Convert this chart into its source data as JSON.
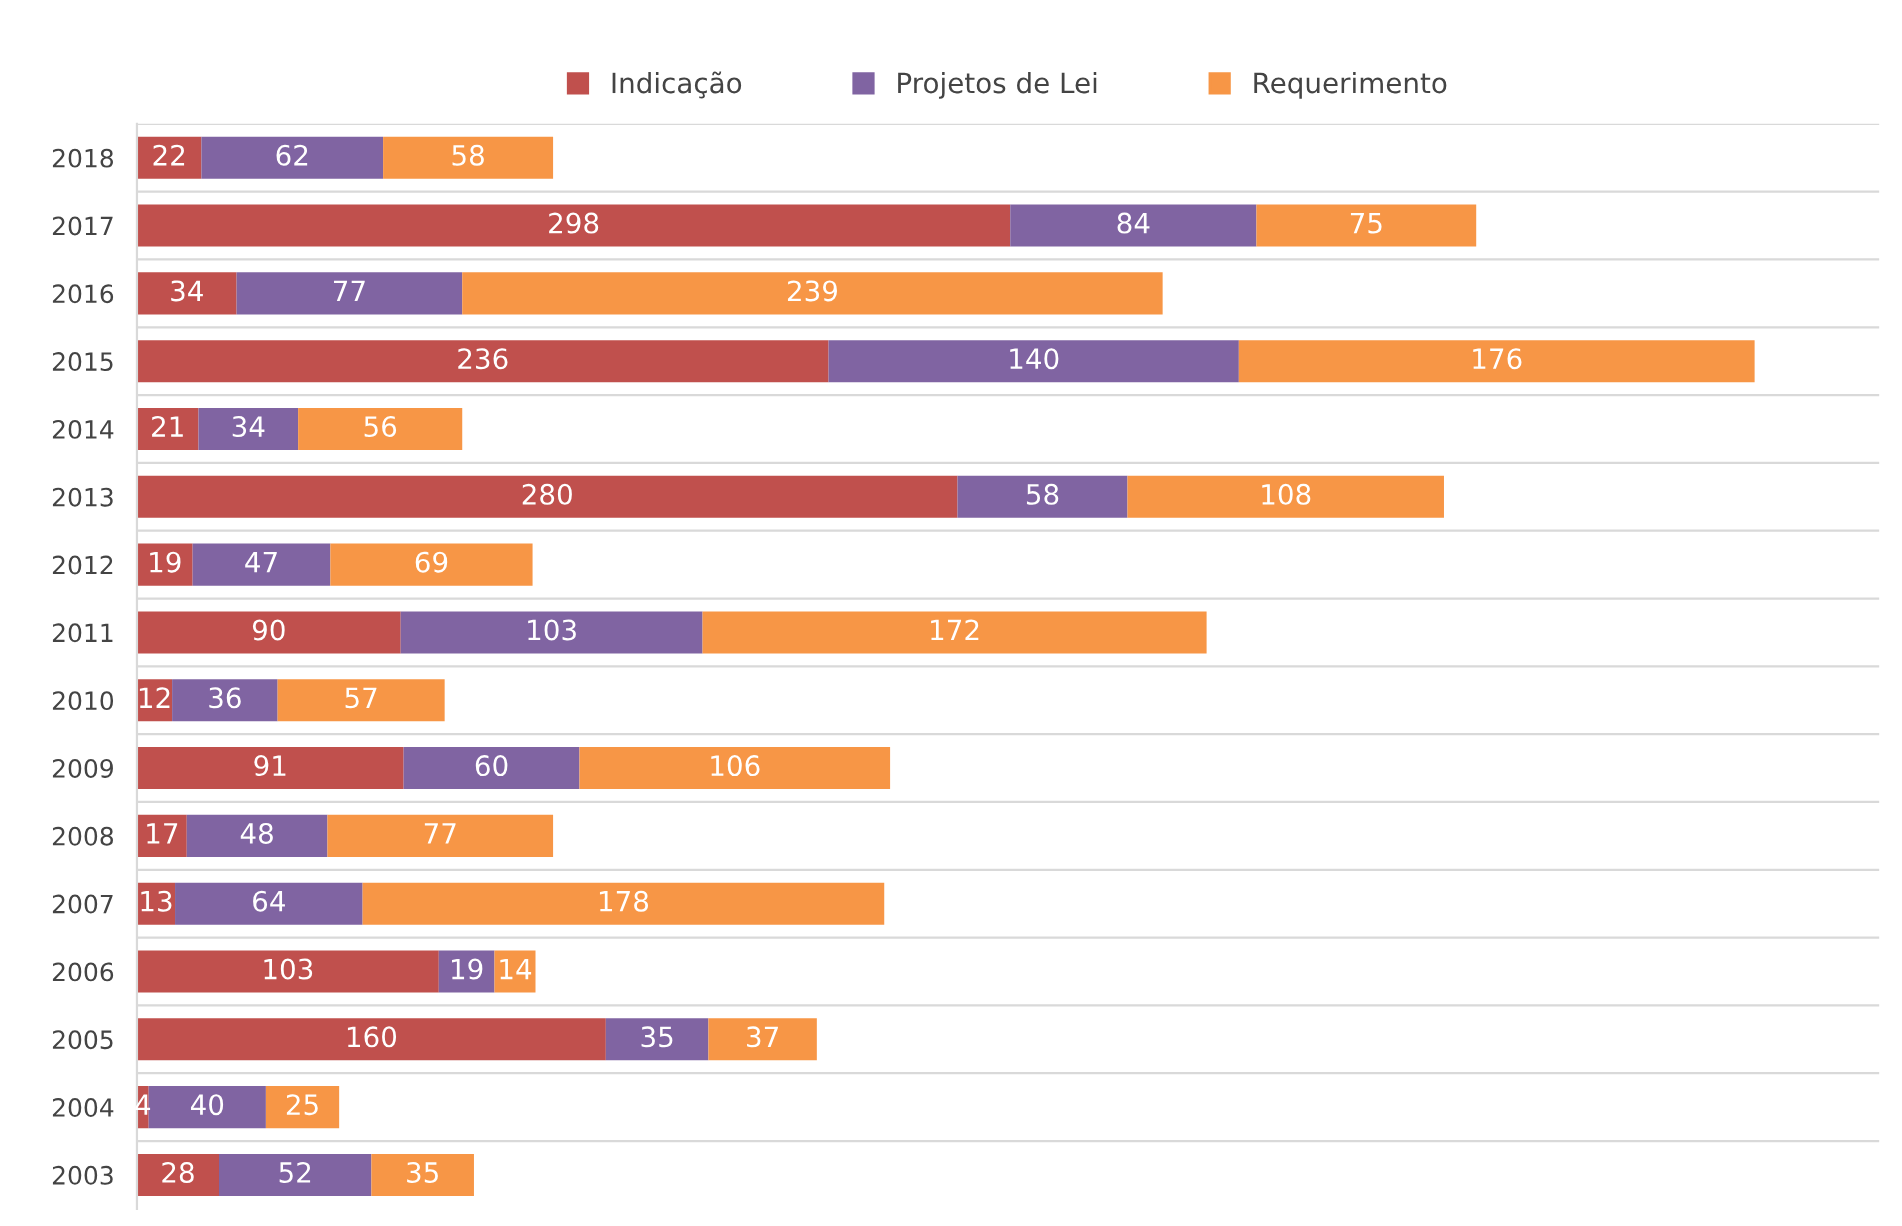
{
  "chart_data": {
    "type": "bar",
    "orientation": "horizontal",
    "stacked": true,
    "data_labels": true,
    "legend": "top",
    "grid": "y",
    "categories": [
      "2018",
      "2017",
      "2016",
      "2015",
      "2014",
      "2013",
      "2012",
      "2011",
      "2010",
      "2009",
      "2008",
      "2007",
      "2006",
      "2005",
      "2004",
      "2003"
    ],
    "series": [
      {
        "name": "Indicação",
        "color": "#c0504d",
        "values": [
          22,
          298,
          34,
          236,
          21,
          280,
          19,
          90,
          12,
          91,
          17,
          13,
          103,
          160,
          4,
          28
        ]
      },
      {
        "name": "Projetos de Lei",
        "color": "#8064a2",
        "values": [
          62,
          84,
          77,
          140,
          34,
          58,
          47,
          103,
          36,
          60,
          48,
          64,
          19,
          35,
          40,
          52
        ]
      },
      {
        "name": "Requerimento",
        "color": "#f79646",
        "values": [
          58,
          75,
          239,
          176,
          56,
          108,
          69,
          172,
          57,
          106,
          77,
          178,
          14,
          37,
          25,
          35
        ]
      }
    ]
  }
}
